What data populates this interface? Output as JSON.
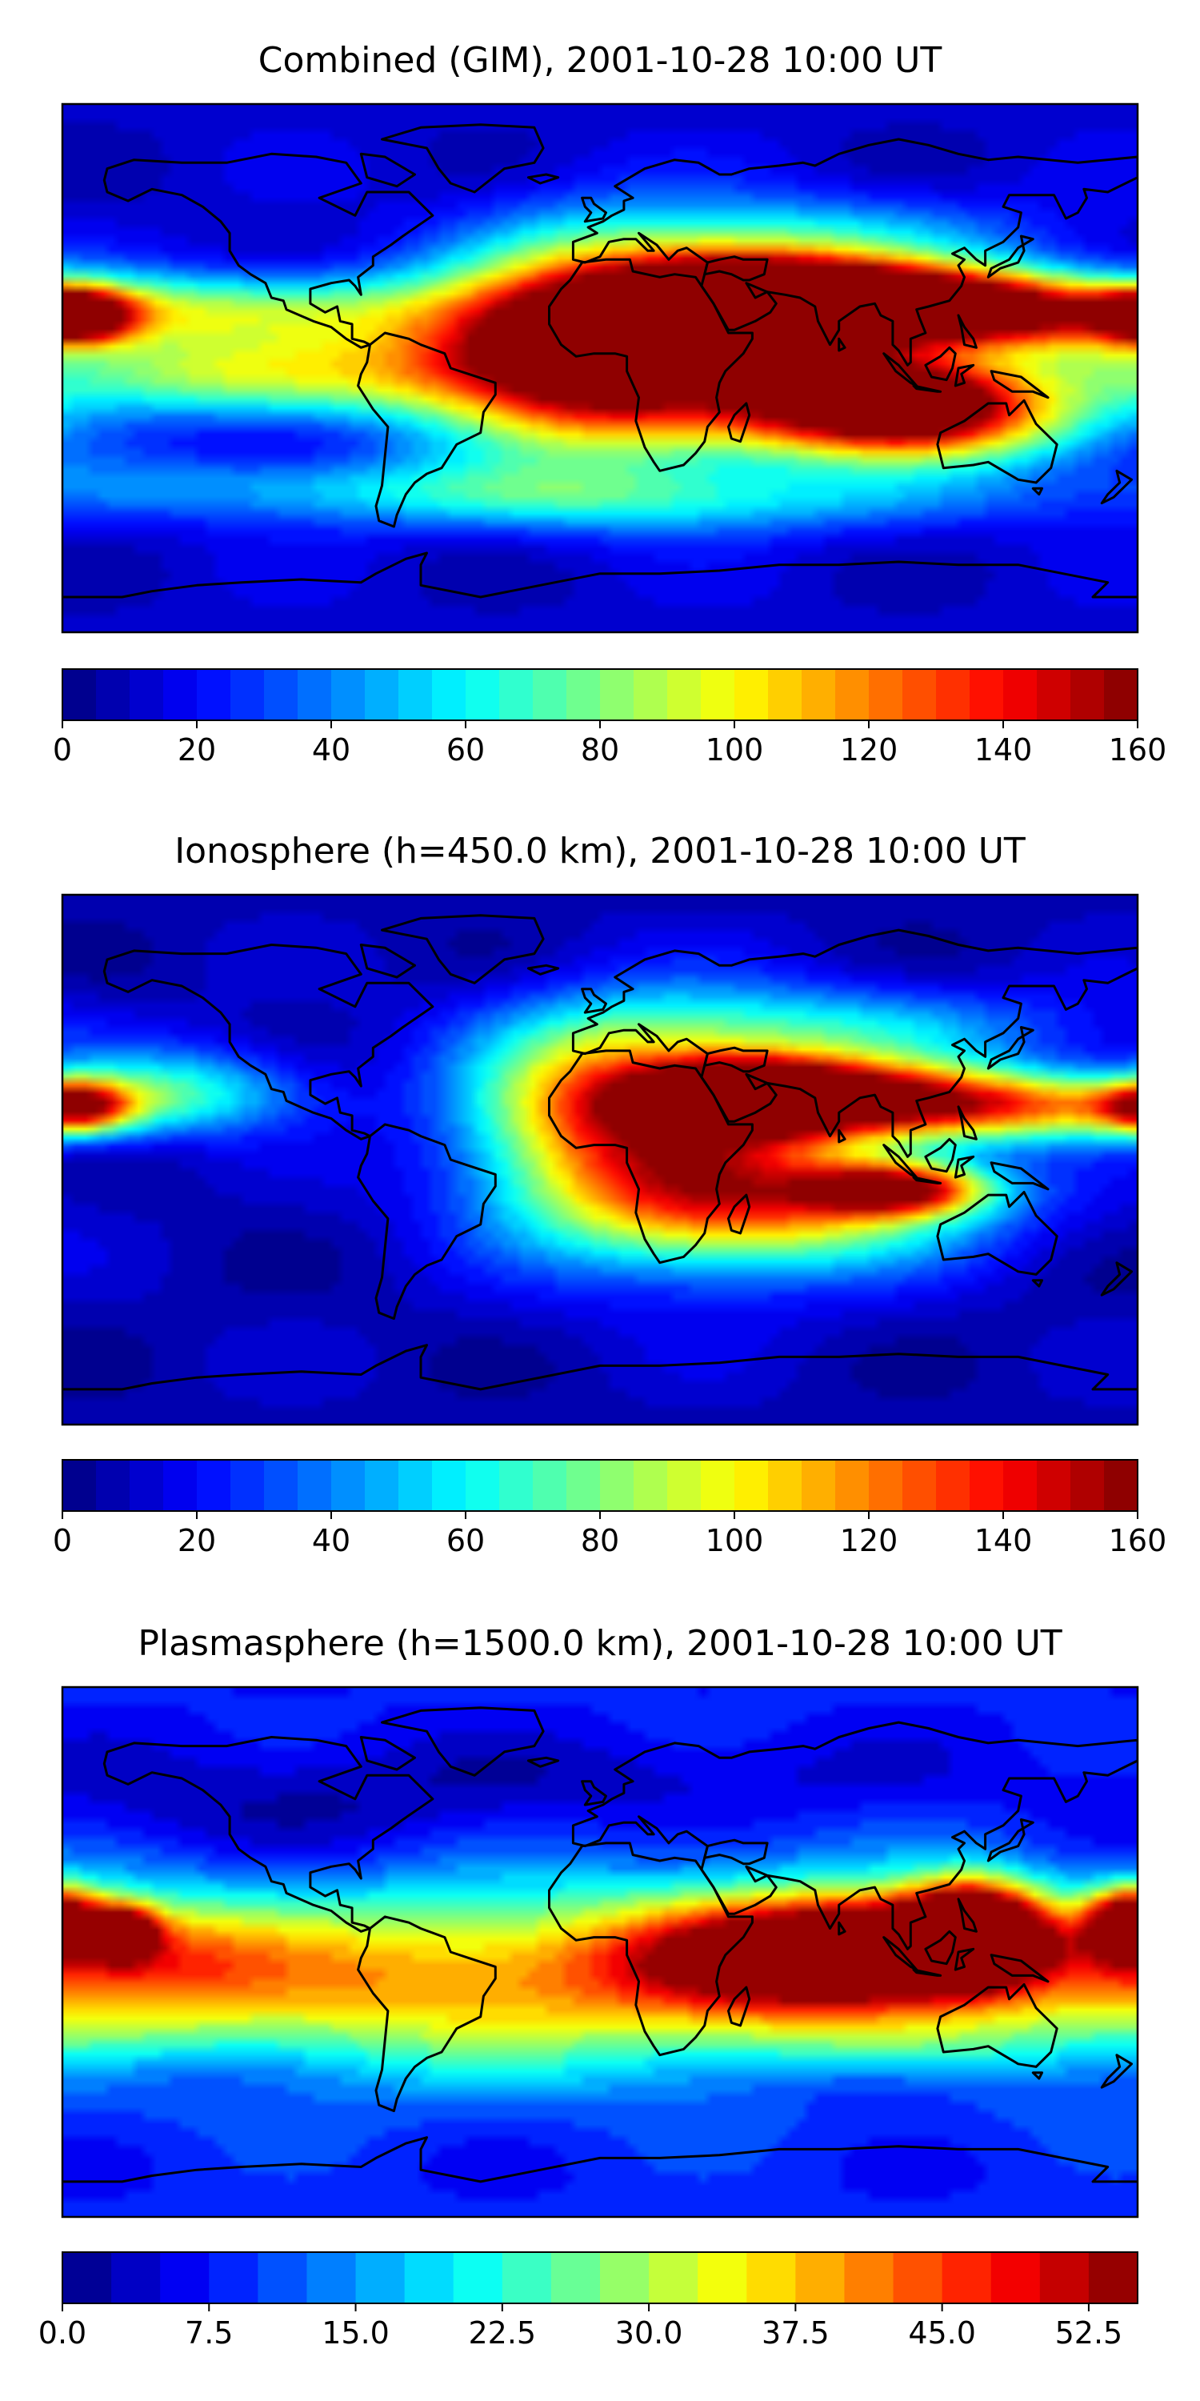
{
  "colormap": {
    "name": "jet",
    "stops": [
      "#00007f",
      "#0000ff",
      "#007fff",
      "#00ffff",
      "#7fff7f",
      "#ffff00",
      "#ff7f00",
      "#ff0000",
      "#7f0000"
    ],
    "coastline_color": "#000000"
  },
  "chart_data": [
    {
      "type": "heatmap",
      "title": "Combined (GIM), 2001-10-28 10:00 UT",
      "xlabel": "",
      "ylabel": "",
      "colorbar": {
        "min": 0,
        "max": 160,
        "levels": 32,
        "tick_values": [
          0,
          20,
          40,
          60,
          80,
          100,
          120,
          140,
          160
        ],
        "tick_labels": [
          "0",
          "20",
          "40",
          "60",
          "80",
          "100",
          "120",
          "140",
          "160"
        ]
      },
      "background_level": 12,
      "features": [
        {
          "lon": 42,
          "lat": 22,
          "amp": 138,
          "sx": 28,
          "sy": 11
        },
        {
          "lon": 82,
          "lat": 24,
          "amp": 140,
          "sx": 40,
          "sy": 9
        },
        {
          "lon": 128,
          "lat": 19,
          "amp": 135,
          "sx": 55,
          "sy": 9
        },
        {
          "lon": 95,
          "lat": -8,
          "amp": 148,
          "sx": 32,
          "sy": 10
        },
        {
          "lon": 25,
          "lat": 0,
          "amp": 100,
          "sx": 42,
          "sy": 22
        },
        {
          "lon": -5,
          "lat": 12,
          "amp": 85,
          "sx": 30,
          "sy": 24
        },
        {
          "lon": 110,
          "lat": -20,
          "amp": 90,
          "sx": 40,
          "sy": 10
        },
        {
          "lon": -40,
          "lat": 5,
          "amp": 65,
          "sx": 35,
          "sy": 18
        },
        {
          "lon": -175,
          "lat": 18,
          "amp": 130,
          "sx": 12,
          "sy": 6
        },
        {
          "lon": -130,
          "lat": -2,
          "amp": 72,
          "sx": 60,
          "sy": 10
        },
        {
          "lon": -110,
          "lat": 20,
          "amp": 55,
          "sx": 45,
          "sy": 9
        },
        {
          "lon": 70,
          "lat": 45,
          "amp": 40,
          "sx": 50,
          "sy": 10
        },
        {
          "lon": 20,
          "lat": -45,
          "amp": 38,
          "sx": 80,
          "sy": 8
        },
        {
          "lon": -100,
          "lat": -40,
          "amp": 30,
          "sx": 70,
          "sy": 8
        }
      ]
    },
    {
      "type": "heatmap",
      "title": "Ionosphere  (h=450.0 km), 2001-10-28 10:00 UT",
      "xlabel": "",
      "ylabel": "",
      "colorbar": {
        "min": 0,
        "max": 160,
        "levels": 32,
        "tick_values": [
          0,
          20,
          40,
          60,
          80,
          100,
          120,
          140,
          160
        ],
        "tick_labels": [
          "0",
          "20",
          "40",
          "60",
          "80",
          "100",
          "120",
          "140",
          "160"
        ]
      },
      "background_level": 8,
      "features": [
        {
          "lon": 50,
          "lat": 22,
          "amp": 120,
          "sx": 22,
          "sy": 8
        },
        {
          "lon": 80,
          "lat": 22,
          "amp": 100,
          "sx": 40,
          "sy": 9
        },
        {
          "lon": 140,
          "lat": 18,
          "amp": 92,
          "sx": 50,
          "sy": 8
        },
        {
          "lon": 100,
          "lat": -10,
          "amp": 115,
          "sx": 20,
          "sy": 6
        },
        {
          "lon": 30,
          "lat": 5,
          "amp": 80,
          "sx": 45,
          "sy": 28
        },
        {
          "lon": 60,
          "lat": -15,
          "amp": 78,
          "sx": 50,
          "sy": 14
        },
        {
          "lon": 0,
          "lat": 20,
          "amp": 70,
          "sx": 30,
          "sy": 20
        },
        {
          "lon": -175,
          "lat": 18,
          "amp": 95,
          "sx": 12,
          "sy": 6
        },
        {
          "lon": -140,
          "lat": 25,
          "amp": 45,
          "sx": 30,
          "sy": 10
        },
        {
          "lon": 80,
          "lat": 45,
          "amp": 38,
          "sx": 60,
          "sy": 10
        }
      ]
    },
    {
      "type": "heatmap",
      "title": "Plasmasphere (h=1500.0 km), 2001-10-28 10:00 UT",
      "xlabel": "",
      "ylabel": "",
      "colorbar": {
        "min": 0.0,
        "max": 55.0,
        "levels": 22,
        "tick_values": [
          0.0,
          7.5,
          15.0,
          22.5,
          30.0,
          37.5,
          45.0,
          52.5
        ],
        "tick_labels": [
          "0.0",
          "7.5",
          "15.0",
          "22.5",
          "30.0",
          "37.5",
          "45.0",
          "52.5"
        ]
      },
      "background_level": 8,
      "features": [
        {
          "lon": 0,
          "lat": -10,
          "amp": 22,
          "sx": 180,
          "sy": 22
        },
        {
          "lon": -155,
          "lat": 0,
          "amp": 14,
          "sx": 30,
          "sy": 12
        },
        {
          "lon": -60,
          "lat": -5,
          "amp": 4,
          "sx": 50,
          "sy": 18
        },
        {
          "lon": -160,
          "lat": 7,
          "amp": 40,
          "sx": 8,
          "sy": 6
        },
        {
          "lon": 125,
          "lat": 8,
          "amp": 52,
          "sx": 15,
          "sy": 11
        },
        {
          "lon": 100,
          "lat": 2,
          "amp": 38,
          "sx": 30,
          "sy": 10
        },
        {
          "lon": 60,
          "lat": 0,
          "amp": 30,
          "sx": 40,
          "sy": 14
        },
        {
          "lon": 178,
          "lat": 10,
          "amp": 45,
          "sx": 10,
          "sy": 8
        },
        {
          "lon": -105,
          "lat": 50,
          "amp": -6,
          "sx": 60,
          "sy": 15
        },
        {
          "lon": 30,
          "lat": 60,
          "amp": -4,
          "sx": 60,
          "sy": 10
        },
        {
          "lon": -150,
          "lat": -40,
          "amp": -5,
          "sx": 35,
          "sy": 8
        },
        {
          "lon": 95,
          "lat": -45,
          "amp": -6,
          "sx": 30,
          "sy": 7
        }
      ]
    }
  ]
}
